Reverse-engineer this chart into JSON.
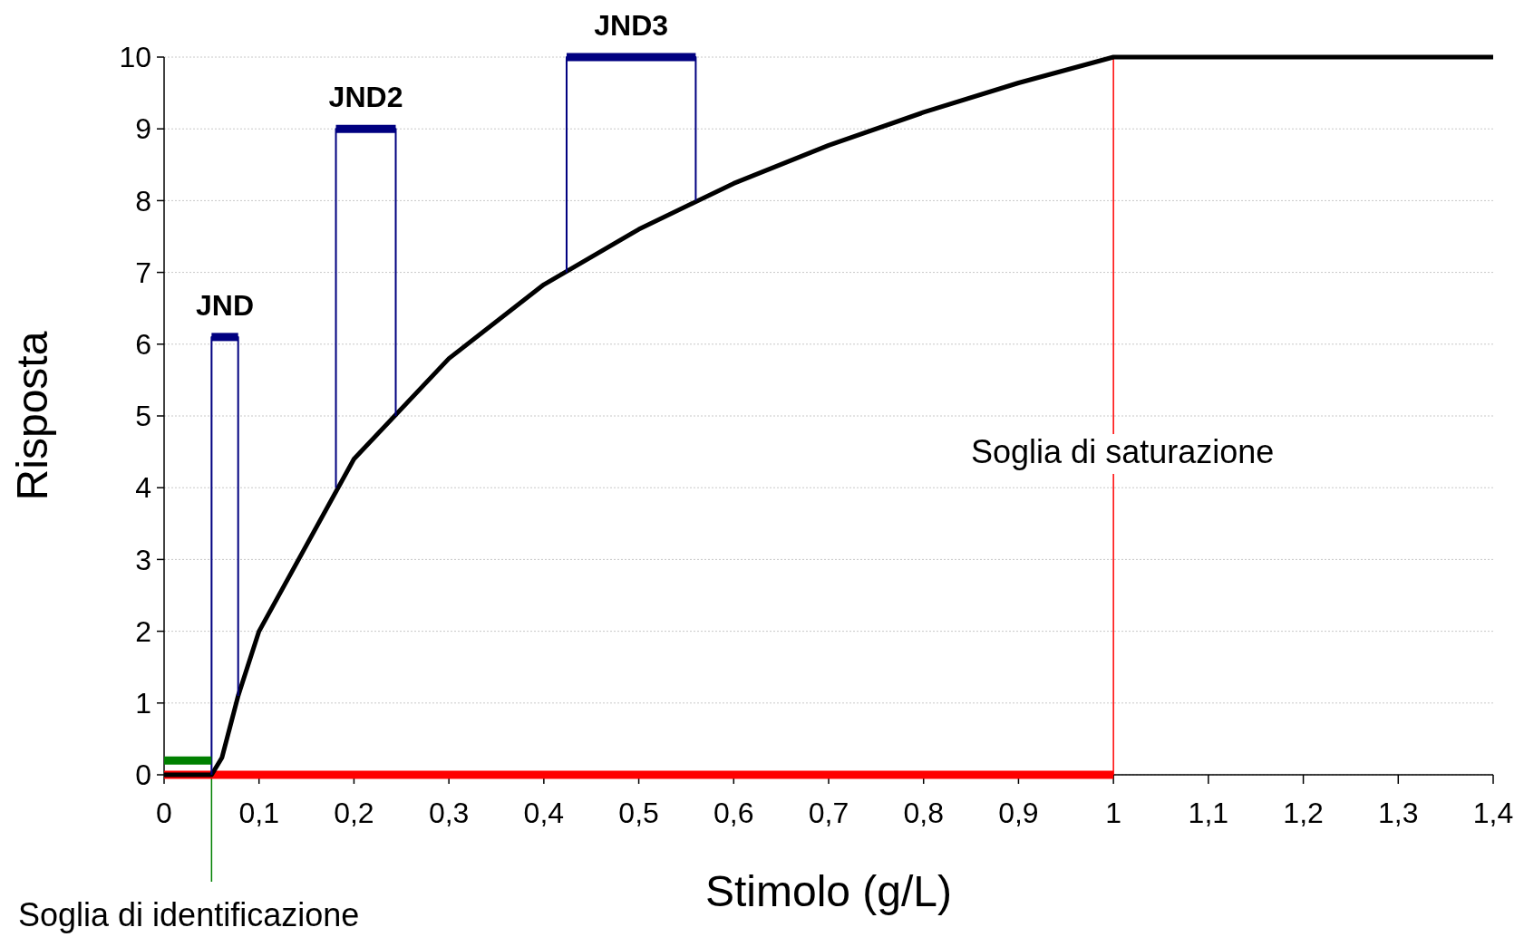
{
  "chart_data": {
    "type": "line",
    "xlabel": "Stimolo (g/L)",
    "ylabel": "Risposta",
    "xlim": [
      0,
      1.4
    ],
    "ylim": [
      0,
      10
    ],
    "xticks": [
      0,
      {
        "value": 0.1,
        "label": "0,1"
      },
      {
        "value": 0.2,
        "label": "0,2"
      },
      {
        "value": 0.3,
        "label": "0,3"
      },
      {
        "value": 0.4,
        "label": "0,4"
      },
      {
        "value": 0.5,
        "label": "0,5"
      },
      {
        "value": 0.6,
        "label": "0,6"
      },
      {
        "value": 0.7,
        "label": "0,7"
      },
      {
        "value": 0.8,
        "label": "0,8"
      },
      {
        "value": 0.9,
        "label": "0,9"
      },
      1,
      {
        "value": 1.1,
        "label": "1,1"
      },
      {
        "value": 1.2,
        "label": "1,2"
      },
      {
        "value": 1.3,
        "label": "1,3"
      },
      {
        "value": 1.4,
        "label": "1,4"
      }
    ],
    "yticks": [
      0,
      1,
      2,
      3,
      4,
      5,
      6,
      7,
      8,
      9,
      10
    ],
    "grid": "y",
    "marker": "none",
    "line_style": "solid",
    "series": [
      {
        "color": "#ff0000",
        "x": [
          0,
          1
        ],
        "values": [
          0,
          0
        ]
      },
      {
        "color": "#000000",
        "x": [
          0,
          0.05,
          0.061,
          0.078,
          0.1,
          0.2,
          0.3,
          0.4,
          0.5,
          0.6,
          0.7,
          0.8,
          0.9,
          1,
          1.4
        ],
        "values": [
          0,
          0,
          0.24,
          1.1,
          2,
          4.4,
          5.8,
          6.83,
          7.6,
          8.24,
          8.77,
          9.23,
          9.64,
          10,
          10
        ]
      },
      {
        "color": "#000080",
        "x": [
          0.05,
          0.05,
          0.078,
          0.078
        ],
        "values": [
          0,
          6.1,
          6.1,
          1.1
        ]
      },
      {
        "color": "#000080",
        "x": [
          0.05,
          0.078
        ],
        "values": [
          6.1,
          6.1
        ]
      },
      {
        "color": "#000080",
        "x": [
          0.181,
          0.181,
          0.244,
          0.244
        ],
        "values": [
          4,
          9,
          9,
          5
        ]
      },
      {
        "color": "#000080",
        "x": [
          0.181,
          0.244
        ],
        "values": [
          9,
          9
        ]
      },
      {
        "color": "#000080",
        "x": [
          0.424,
          0.424,
          0.56,
          0.56
        ],
        "values": [
          7,
          10,
          10,
          8
        ]
      },
      {
        "color": "#000080",
        "x": [
          0.424,
          0.56
        ],
        "values": [
          10,
          10
        ]
      },
      {
        "color": "#008000",
        "x": [
          0,
          0.05
        ],
        "values": [
          0.2,
          0.2
        ]
      }
    ],
    "ref_lines": [
      {
        "axis": "x",
        "value": 0.05,
        "label": "Soglia di identificazione",
        "color": "#008000"
      },
      {
        "axis": "x",
        "value": 1,
        "label": "Soglia di saturazione",
        "color": "#ff0000"
      }
    ],
    "annotations": [
      {
        "text": "JND",
        "x": 0.064,
        "y": 6.1
      },
      {
        "text": "JND2",
        "x": 0.2125,
        "y": 9
      },
      {
        "text": "JND3",
        "x": 0.492,
        "y": 10
      }
    ]
  }
}
